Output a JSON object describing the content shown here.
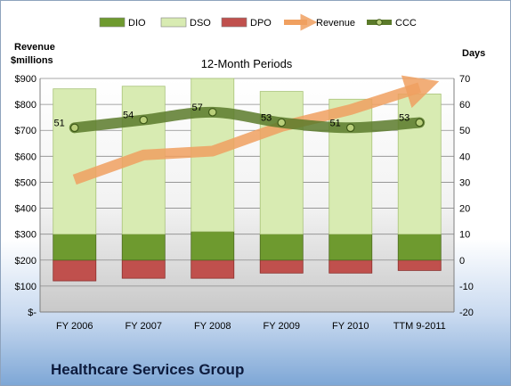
{
  "company": "Healthcare Services Group",
  "chart_data": {
    "type": "bar",
    "title": "12-Month Periods",
    "left_axis_label": [
      "Revenue",
      "$millions"
    ],
    "right_axis_label": "Days",
    "categories": [
      "FY 2006",
      "FY 2007",
      "FY 2008",
      "FY 2009",
      "FY 2010",
      "TTM 9-2011"
    ],
    "left_axis": {
      "min": 0,
      "max": 900,
      "step": 100,
      "tick_labels": [
        "$-",
        "$100",
        "$200",
        "$300",
        "$400",
        "$500",
        "$600",
        "$700",
        "$800",
        "$900"
      ]
    },
    "right_axis": {
      "min": -20,
      "max": 70,
      "step": 10,
      "tick_labels": [
        "-20",
        "-10",
        "0",
        "10",
        "20",
        "30",
        "40",
        "50",
        "60",
        "70"
      ]
    },
    "series": [
      {
        "name": "DIO",
        "kind": "stacked-bar",
        "color": "#6e9a2f",
        "values": [
          10,
          10,
          11,
          10,
          10,
          10
        ]
      },
      {
        "name": "DSO",
        "kind": "stacked-bar",
        "color": "#d8ebb2",
        "values": [
          56,
          57,
          59,
          55,
          52,
          54
        ]
      },
      {
        "name": "DPO",
        "kind": "stacked-bar-negative",
        "color": "#c0504d",
        "values": [
          -8,
          -7,
          -7,
          -5,
          -5,
          -4
        ]
      },
      {
        "name": "Revenue",
        "kind": "arrow-line",
        "axis": "left",
        "color": "#f0a060",
        "values": [
          510,
          605,
          620,
          715,
          780,
          865
        ]
      },
      {
        "name": "CCC",
        "kind": "line",
        "axis": "right",
        "color": "#5b7a2a",
        "values": [
          51,
          54,
          57,
          53,
          51,
          53
        ],
        "data_labels": [
          "51",
          "54",
          "57",
          "53",
          "51",
          "53"
        ]
      }
    ],
    "grid": true,
    "legend_position": "top"
  }
}
